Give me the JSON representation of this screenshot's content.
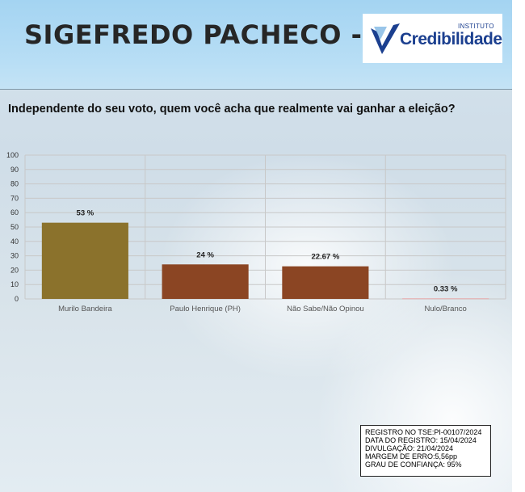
{
  "header": {
    "city": "SIGEFREDO PACHECO - PI",
    "logo": {
      "top": "INSTITUTO",
      "name": "Credibilidade"
    }
  },
  "question": "Independente do seu voto, quem você acha que realmente vai ganhar a eleição?",
  "chart_data": {
    "type": "bar",
    "categories": [
      "Murilo Bandeira",
      "Paulo Henrique (PH)",
      "Não Sabe/Não Opinou",
      "Nulo/Branco"
    ],
    "values": [
      53,
      24,
      22.67,
      0.33
    ],
    "value_labels": [
      "53 %",
      "24 %",
      "22.67 %",
      "0.33 %"
    ],
    "colors": [
      "#8b722c",
      "#8b4523",
      "#8b4523",
      "#e79a9a"
    ],
    "ylim": [
      0,
      100
    ],
    "yticks": [
      0,
      10,
      20,
      30,
      40,
      50,
      60,
      70,
      80,
      90,
      100
    ],
    "grid": true,
    "title": "",
    "xlabel": "",
    "ylabel": ""
  },
  "registro": {
    "lines": [
      "REGISTRO NO TSE:PI-00107/2024",
      "DATA DO REGISTRO: 15/04/2024",
      "DIVULGAÇÃO: 21/04/2024",
      "MARGEM DE ERRO:5,56pp",
      "GRAU DE CONFIANÇA: 95%"
    ]
  }
}
